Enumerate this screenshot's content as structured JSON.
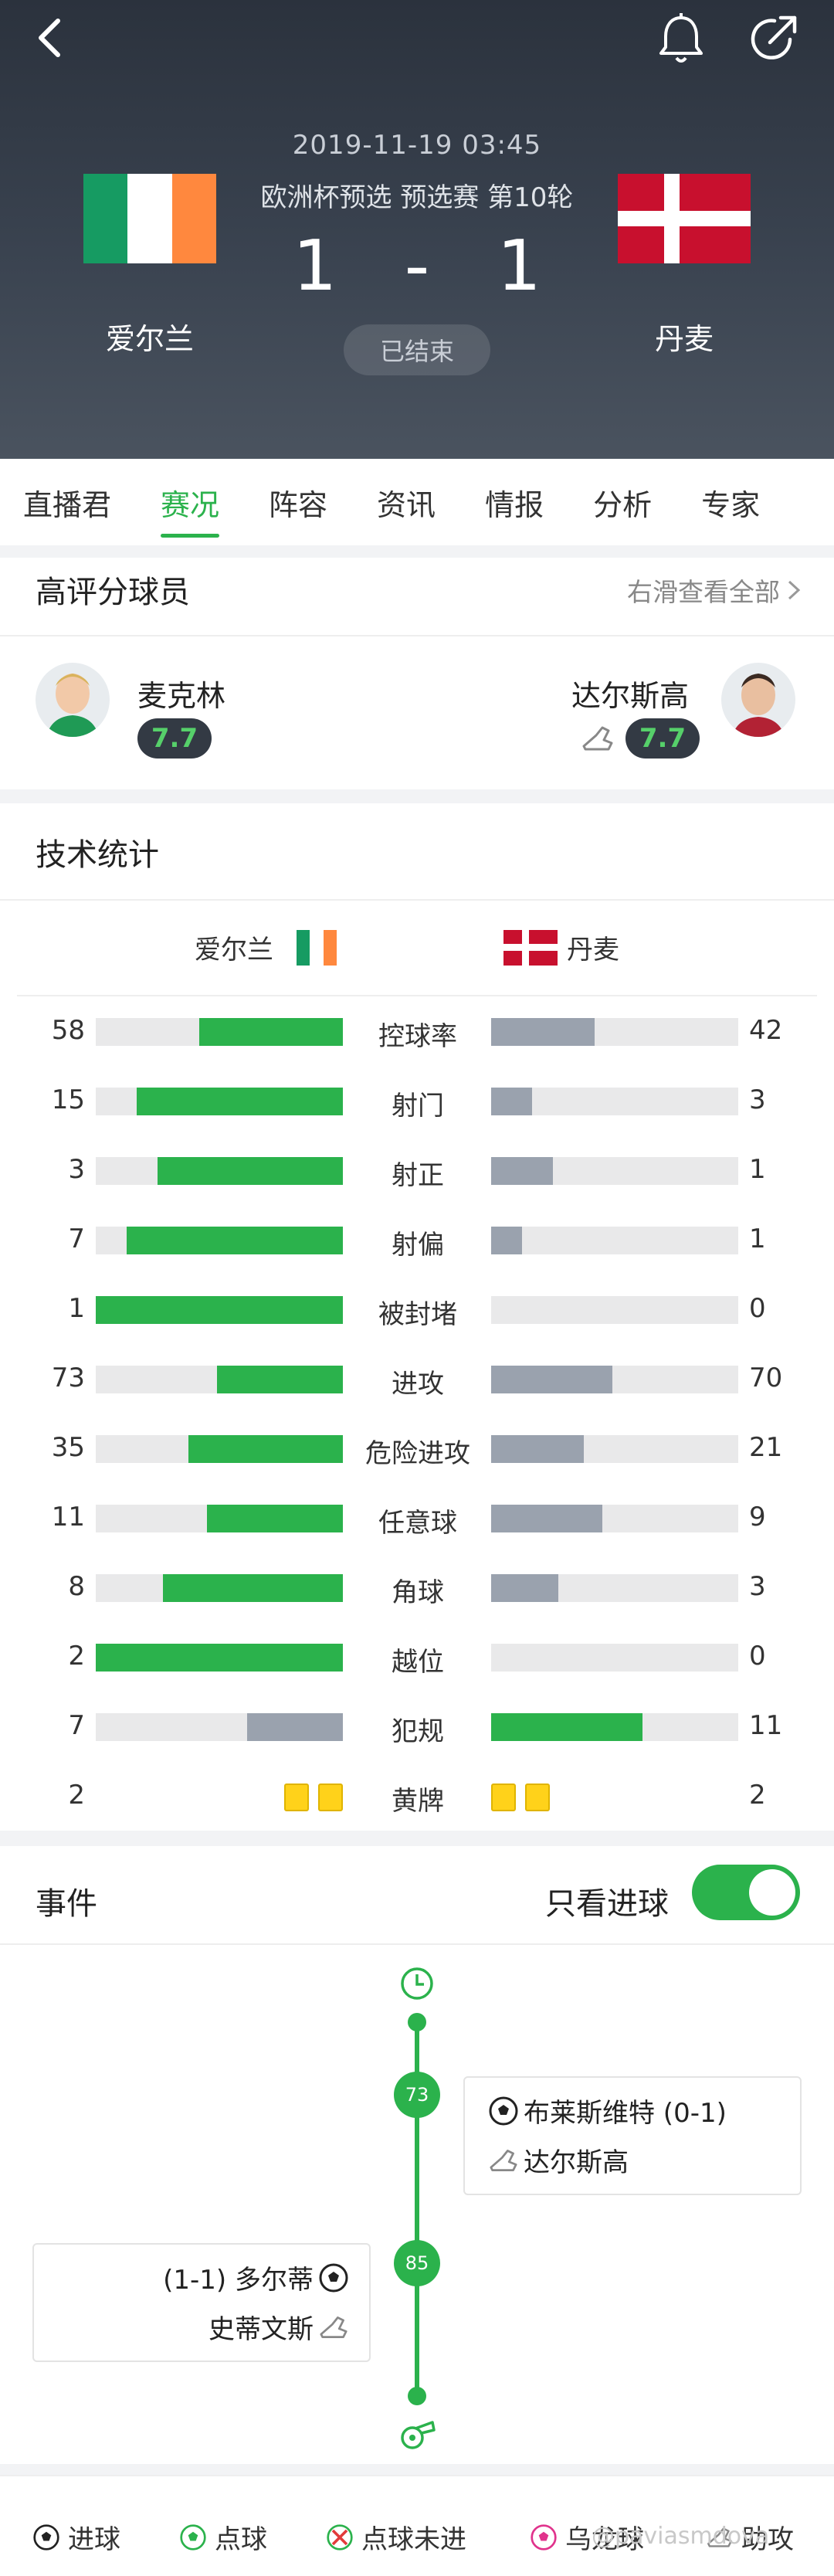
{
  "header": {
    "datetime": "2019-11-19 03:45",
    "competition": "欧洲杯预选 预选赛 第10轮",
    "home": {
      "name": "爱尔兰",
      "score": "1"
    },
    "away": {
      "name": "丹麦",
      "score": "1"
    },
    "score_sep": "-",
    "status": "已结束"
  },
  "tabs": [
    "直播君",
    "赛况",
    "阵容",
    "资讯",
    "情报",
    "分析",
    "专家"
  ],
  "top_players": {
    "title": "高评分球员",
    "more": "右滑查看全部",
    "home": {
      "name": "麦克林",
      "rating": "7.7"
    },
    "away": {
      "name": "达尔斯高",
      "rating": "7.7"
    }
  },
  "stats": {
    "title": "技术统计",
    "home_team": "爱尔兰",
    "away_team": "丹麦",
    "rows": [
      {
        "label": "控球率",
        "home": 58,
        "away": 42,
        "home_frac": 0.58,
        "away_frac": 0.42
      },
      {
        "label": "射门",
        "home": 15,
        "away": 3,
        "home_frac": 0.833,
        "away_frac": 0.167
      },
      {
        "label": "射正",
        "home": 3,
        "away": 1,
        "home_frac": 0.75,
        "away_frac": 0.25
      },
      {
        "label": "射偏",
        "home": 7,
        "away": 1,
        "home_frac": 0.875,
        "away_frac": 0.125
      },
      {
        "label": "被封堵",
        "home": 1,
        "away": 0,
        "home_frac": 1.0,
        "away_frac": 0.0
      },
      {
        "label": "进攻",
        "home": 73,
        "away": 70,
        "home_frac": 0.51,
        "away_frac": 0.49
      },
      {
        "label": "危险进攻",
        "home": 35,
        "away": 21,
        "home_frac": 0.625,
        "away_frac": 0.375
      },
      {
        "label": "任意球",
        "home": 11,
        "away": 9,
        "home_frac": 0.55,
        "away_frac": 0.45
      },
      {
        "label": "角球",
        "home": 8,
        "away": 3,
        "home_frac": 0.727,
        "away_frac": 0.273
      },
      {
        "label": "越位",
        "home": 2,
        "away": 0,
        "home_frac": 1.0,
        "away_frac": 0.0
      },
      {
        "label": "犯规",
        "home": 7,
        "away": 11,
        "home_frac": 0.389,
        "away_frac": 0.611
      },
      {
        "label": "黄牌",
        "home": 2,
        "away": 2
      }
    ]
  },
  "events": {
    "title": "事件",
    "toggle_label": "只看进球",
    "toggle_on": true,
    "items": [
      {
        "minute": "73",
        "side": "away",
        "scorer": "布莱斯维特 (0-1)",
        "assist": "达尔斯高"
      },
      {
        "minute": "85",
        "side": "home",
        "scorer": "(1-1) 多尔蒂",
        "assist": "史蒂文斯"
      }
    ]
  },
  "legend": {
    "goal": "进球",
    "penalty": "点球",
    "penalty_missed": "点球未进",
    "own_goal": "乌龙球",
    "assist": "助攻",
    "watermark": "@paviasmdova"
  },
  "colors": {
    "accent": "#2bb24c",
    "away_bar": "#9aa2ae",
    "header_bg": "#2b323d"
  }
}
